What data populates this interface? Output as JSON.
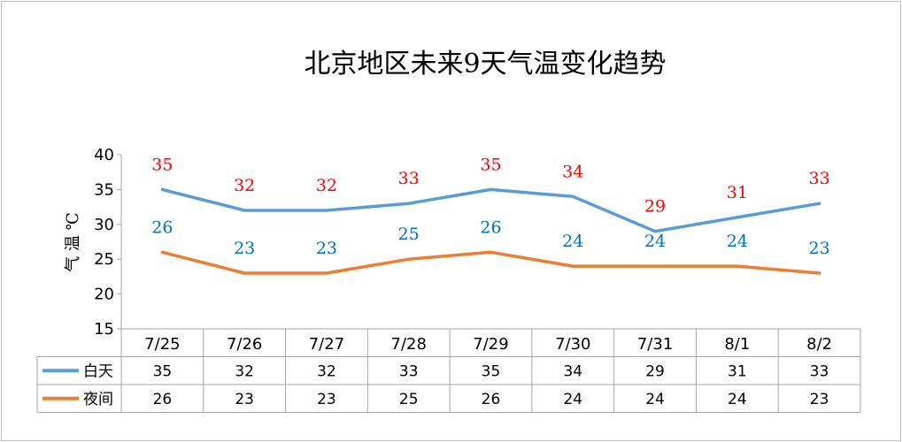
{
  "chart_data": {
    "type": "line",
    "title": "北京地区未来9天气温变化趋势",
    "ylabel": "气 温 ℃",
    "xlabel": "",
    "ylim": [
      15,
      40
    ],
    "yticks": [
      "15",
      "20",
      "25",
      "30",
      "35",
      "40"
    ],
    "categories": [
      "7/25",
      "7/26",
      "7/27",
      "7/28",
      "7/29",
      "7/30",
      "7/31",
      "8/1",
      "8/2"
    ],
    "grid": false,
    "legend": "data-table",
    "series": [
      {
        "name": "白天",
        "values": [
          35,
          32,
          32,
          33,
          35,
          34,
          29,
          31,
          33
        ],
        "color": "#5b9bd5",
        "label_color": "#ff0000"
      },
      {
        "name": "夜间",
        "values": [
          26,
          23,
          23,
          25,
          26,
          24,
          24,
          24,
          23
        ],
        "color": "#ed7d31",
        "label_color": "#0070c0"
      }
    ]
  }
}
